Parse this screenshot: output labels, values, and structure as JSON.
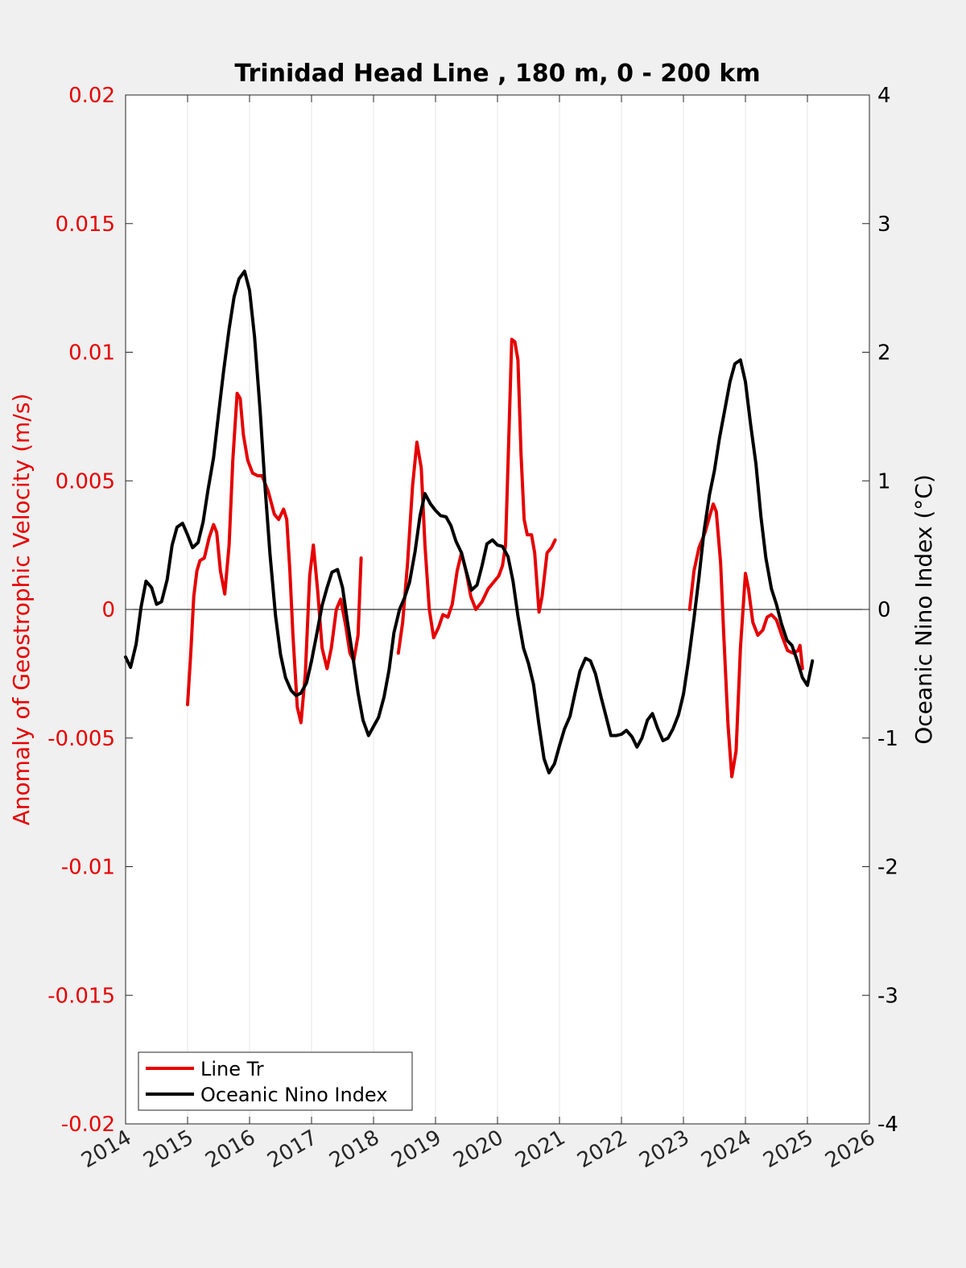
{
  "chart_data": {
    "type": "line",
    "title": "Trinidad Head Line , 180 m, 0 - 200 km",
    "xlim": [
      2014,
      2026
    ],
    "x_ticks": [
      "2014",
      "2015",
      "2016",
      "2017",
      "2018",
      "2019",
      "2020",
      "2021",
      "2022",
      "2023",
      "2024",
      "2025",
      "2026"
    ],
    "left_axis": {
      "label": "Anomaly of Geostrophic Velocity (m/s)",
      "color": "#e60000",
      "ylim": [
        -0.02,
        0.02
      ],
      "ticks": [
        "-0.02",
        "-0.015",
        "-0.01",
        "-0.005",
        "0",
        "0.005",
        "0.01",
        "0.015",
        "0.02"
      ]
    },
    "right_axis": {
      "label": "Oceanic Nino Index (°C)",
      "color": "#000000",
      "ylim": [
        -4,
        4
      ],
      "ticks": [
        "-4",
        "-3",
        "-2",
        "-1",
        "0",
        "1",
        "2",
        "3",
        "4"
      ]
    },
    "grid": "vertical",
    "zero_line": true,
    "legend": {
      "position": "bottom-left"
    },
    "series": [
      {
        "name": "Line Tr",
        "axis": "left",
        "color": "#e60000",
        "segments": [
          [
            [
              2015.0,
              -0.0037
            ],
            [
              2015.05,
              -0.0018
            ],
            [
              2015.1,
              0.0005
            ],
            [
              2015.15,
              0.0015
            ],
            [
              2015.2,
              0.0019
            ],
            [
              2015.27,
              0.002
            ],
            [
              2015.35,
              0.0028
            ],
            [
              2015.42,
              0.0033
            ],
            [
              2015.47,
              0.003
            ],
            [
              2015.53,
              0.0015
            ],
            [
              2015.6,
              0.0006
            ],
            [
              2015.67,
              0.0025
            ],
            [
              2015.73,
              0.0058
            ],
            [
              2015.8,
              0.0084
            ],
            [
              2015.85,
              0.0082
            ],
            [
              2015.9,
              0.0068
            ],
            [
              2015.97,
              0.0058
            ],
            [
              2016.05,
              0.0053
            ],
            [
              2016.13,
              0.0052
            ],
            [
              2016.2,
              0.0052
            ],
            [
              2016.3,
              0.0046
            ],
            [
              2016.4,
              0.0037
            ],
            [
              2016.47,
              0.0035
            ],
            [
              2016.55,
              0.0039
            ],
            [
              2016.6,
              0.0035
            ],
            [
              2016.65,
              0.0015
            ],
            [
              2016.7,
              -0.001
            ],
            [
              2016.77,
              -0.0038
            ],
            [
              2016.83,
              -0.0044
            ],
            [
              2016.9,
              -0.0025
            ],
            [
              2016.97,
              0.0013
            ],
            [
              2017.03,
              0.0025
            ],
            [
              2017.1,
              0.0007
            ],
            [
              2017.17,
              -0.0015
            ],
            [
              2017.25,
              -0.0023
            ],
            [
              2017.32,
              -0.0015
            ],
            [
              2017.4,
              0.0
            ],
            [
              2017.47,
              0.0004
            ],
            [
              2017.55,
              -0.0006
            ],
            [
              2017.62,
              -0.0017
            ],
            [
              2017.68,
              -0.002
            ],
            [
              2017.75,
              -0.001
            ],
            [
              2017.8,
              0.002
            ]
          ],
          [
            [
              2018.4,
              -0.0017
            ],
            [
              2018.47,
              -0.0005
            ],
            [
              2018.55,
              0.0018
            ],
            [
              2018.63,
              0.0048
            ],
            [
              2018.7,
              0.0065
            ],
            [
              2018.77,
              0.0055
            ],
            [
              2018.83,
              0.0025
            ],
            [
              2018.9,
              0.0
            ],
            [
              2018.97,
              -0.0011
            ],
            [
              2019.05,
              -0.0007
            ],
            [
              2019.12,
              -0.0002
            ],
            [
              2019.2,
              -0.0003
            ],
            [
              2019.27,
              0.0002
            ],
            [
              2019.35,
              0.0015
            ],
            [
              2019.42,
              0.0022
            ],
            [
              2019.5,
              0.0014
            ],
            [
              2019.57,
              0.0005
            ],
            [
              2019.65,
              0.0
            ],
            [
              2019.75,
              0.0003
            ],
            [
              2019.85,
              0.0008
            ],
            [
              2019.95,
              0.0011
            ],
            [
              2020.02,
              0.0013
            ],
            [
              2020.08,
              0.0017
            ],
            [
              2020.13,
              0.0025
            ],
            [
              2020.18,
              0.0065
            ],
            [
              2020.23,
              0.0105
            ],
            [
              2020.28,
              0.0104
            ],
            [
              2020.33,
              0.0097
            ],
            [
              2020.38,
              0.006
            ],
            [
              2020.43,
              0.0035
            ],
            [
              2020.48,
              0.0029
            ],
            [
              2020.55,
              0.0029
            ],
            [
              2020.6,
              0.0022
            ],
            [
              2020.67,
              -0.0001
            ],
            [
              2020.72,
              0.0005
            ],
            [
              2020.8,
              0.0022
            ],
            [
              2020.87,
              0.0024
            ],
            [
              2020.93,
              0.0027
            ]
          ],
          [
            [
              2023.1,
              0.0
            ],
            [
              2023.17,
              0.0015
            ],
            [
              2023.25,
              0.0024
            ],
            [
              2023.35,
              0.003
            ],
            [
              2023.42,
              0.0036
            ],
            [
              2023.48,
              0.0041
            ],
            [
              2023.53,
              0.0038
            ],
            [
              2023.6,
              0.0018
            ],
            [
              2023.65,
              -0.001
            ],
            [
              2023.72,
              -0.0045
            ],
            [
              2023.78,
              -0.0065
            ],
            [
              2023.85,
              -0.0055
            ],
            [
              2023.92,
              -0.0015
            ],
            [
              2024.0,
              0.0014
            ],
            [
              2024.05,
              0.0008
            ],
            [
              2024.12,
              -0.0005
            ],
            [
              2024.2,
              -0.001
            ],
            [
              2024.28,
              -0.0008
            ],
            [
              2024.35,
              -0.0003
            ],
            [
              2024.42,
              -0.0002
            ],
            [
              2024.5,
              -0.0004
            ],
            [
              2024.6,
              -0.0011
            ],
            [
              2024.68,
              -0.0016
            ],
            [
              2024.77,
              -0.0017
            ],
            [
              2024.85,
              -0.0016
            ],
            [
              2024.88,
              -0.0014
            ],
            [
              2024.92,
              -0.0023
            ]
          ]
        ]
      },
      {
        "name": "Oceanic Nino Index",
        "axis": "right",
        "color": "#000000",
        "segments": [
          [
            [
              2014.0,
              -0.37
            ],
            [
              2014.08,
              -0.45
            ],
            [
              2014.17,
              -0.27
            ],
            [
              2014.25,
              0.02
            ],
            [
              2014.33,
              0.22
            ],
            [
              2014.42,
              0.17
            ],
            [
              2014.5,
              0.04
            ],
            [
              2014.58,
              0.06
            ],
            [
              2014.67,
              0.23
            ],
            [
              2014.75,
              0.5
            ],
            [
              2014.83,
              0.64
            ],
            [
              2014.92,
              0.67
            ],
            [
              2015.0,
              0.58
            ],
            [
              2015.08,
              0.48
            ],
            [
              2015.17,
              0.52
            ],
            [
              2015.25,
              0.68
            ],
            [
              2015.33,
              0.93
            ],
            [
              2015.42,
              1.18
            ],
            [
              2015.5,
              1.52
            ],
            [
              2015.58,
              1.85
            ],
            [
              2015.67,
              2.18
            ],
            [
              2015.75,
              2.43
            ],
            [
              2015.83,
              2.57
            ],
            [
              2015.92,
              2.63
            ],
            [
              2016.0,
              2.48
            ],
            [
              2016.08,
              2.12
            ],
            [
              2016.17,
              1.55
            ],
            [
              2016.25,
              0.95
            ],
            [
              2016.33,
              0.43
            ],
            [
              2016.42,
              -0.05
            ],
            [
              2016.5,
              -0.35
            ],
            [
              2016.58,
              -0.53
            ],
            [
              2016.67,
              -0.63
            ],
            [
              2016.75,
              -0.67
            ],
            [
              2016.83,
              -0.65
            ],
            [
              2016.92,
              -0.57
            ],
            [
              2017.0,
              -0.4
            ],
            [
              2017.08,
              -0.2
            ],
            [
              2017.17,
              0.03
            ],
            [
              2017.25,
              0.17
            ],
            [
              2017.33,
              0.29
            ],
            [
              2017.42,
              0.31
            ],
            [
              2017.5,
              0.17
            ],
            [
              2017.58,
              -0.1
            ],
            [
              2017.67,
              -0.38
            ],
            [
              2017.75,
              -0.65
            ],
            [
              2017.83,
              -0.86
            ],
            [
              2017.92,
              -0.98
            ],
            [
              2018.0,
              -0.91
            ],
            [
              2018.08,
              -0.84
            ],
            [
              2018.17,
              -0.68
            ],
            [
              2018.25,
              -0.47
            ],
            [
              2018.33,
              -0.18
            ],
            [
              2018.42,
              0.0
            ],
            [
              2018.5,
              0.09
            ],
            [
              2018.58,
              0.21
            ],
            [
              2018.67,
              0.45
            ],
            [
              2018.75,
              0.73
            ],
            [
              2018.83,
              0.9
            ],
            [
              2018.92,
              0.82
            ],
            [
              2019.0,
              0.77
            ],
            [
              2019.08,
              0.73
            ],
            [
              2019.17,
              0.72
            ],
            [
              2019.25,
              0.65
            ],
            [
              2019.33,
              0.53
            ],
            [
              2019.42,
              0.44
            ],
            [
              2019.5,
              0.29
            ],
            [
              2019.58,
              0.15
            ],
            [
              2019.67,
              0.19
            ],
            [
              2019.75,
              0.34
            ],
            [
              2019.83,
              0.51
            ],
            [
              2019.92,
              0.54
            ],
            [
              2020.0,
              0.5
            ],
            [
              2020.08,
              0.49
            ],
            [
              2020.17,
              0.41
            ],
            [
              2020.25,
              0.22
            ],
            [
              2020.33,
              -0.05
            ],
            [
              2020.42,
              -0.3
            ],
            [
              2020.5,
              -0.42
            ],
            [
              2020.58,
              -0.58
            ],
            [
              2020.67,
              -0.9
            ],
            [
              2020.75,
              -1.16
            ],
            [
              2020.83,
              -1.27
            ],
            [
              2020.92,
              -1.2
            ],
            [
              2021.0,
              -1.06
            ],
            [
              2021.08,
              -0.93
            ],
            [
              2021.17,
              -0.83
            ],
            [
              2021.25,
              -0.65
            ],
            [
              2021.33,
              -0.48
            ],
            [
              2021.42,
              -0.38
            ],
            [
              2021.5,
              -0.4
            ],
            [
              2021.58,
              -0.5
            ],
            [
              2021.67,
              -0.68
            ],
            [
              2021.75,
              -0.83
            ],
            [
              2021.83,
              -0.98
            ],
            [
              2021.92,
              -0.98
            ],
            [
              2022.0,
              -0.97
            ],
            [
              2022.08,
              -0.94
            ],
            [
              2022.17,
              -0.99
            ],
            [
              2022.25,
              -1.07
            ],
            [
              2022.33,
              -1.0
            ],
            [
              2022.42,
              -0.86
            ],
            [
              2022.5,
              -0.81
            ],
            [
              2022.58,
              -0.92
            ],
            [
              2022.67,
              -1.02
            ],
            [
              2022.75,
              -1.0
            ],
            [
              2022.83,
              -0.93
            ],
            [
              2022.92,
              -0.82
            ],
            [
              2023.0,
              -0.66
            ],
            [
              2023.08,
              -0.4
            ],
            [
              2023.17,
              -0.07
            ],
            [
              2023.25,
              0.25
            ],
            [
              2023.33,
              0.6
            ],
            [
              2023.42,
              0.89
            ],
            [
              2023.5,
              1.08
            ],
            [
              2023.58,
              1.33
            ],
            [
              2023.67,
              1.56
            ],
            [
              2023.75,
              1.77
            ],
            [
              2023.83,
              1.91
            ],
            [
              2023.92,
              1.94
            ],
            [
              2024.0,
              1.77
            ],
            [
              2024.08,
              1.45
            ],
            [
              2024.17,
              1.13
            ],
            [
              2024.25,
              0.72
            ],
            [
              2024.33,
              0.4
            ],
            [
              2024.42,
              0.16
            ],
            [
              2024.5,
              0.04
            ],
            [
              2024.58,
              -0.11
            ],
            [
              2024.67,
              -0.24
            ],
            [
              2024.75,
              -0.28
            ],
            [
              2024.83,
              -0.39
            ],
            [
              2024.92,
              -0.53
            ],
            [
              2025.0,
              -0.59
            ],
            [
              2025.08,
              -0.4
            ]
          ]
        ]
      }
    ]
  }
}
